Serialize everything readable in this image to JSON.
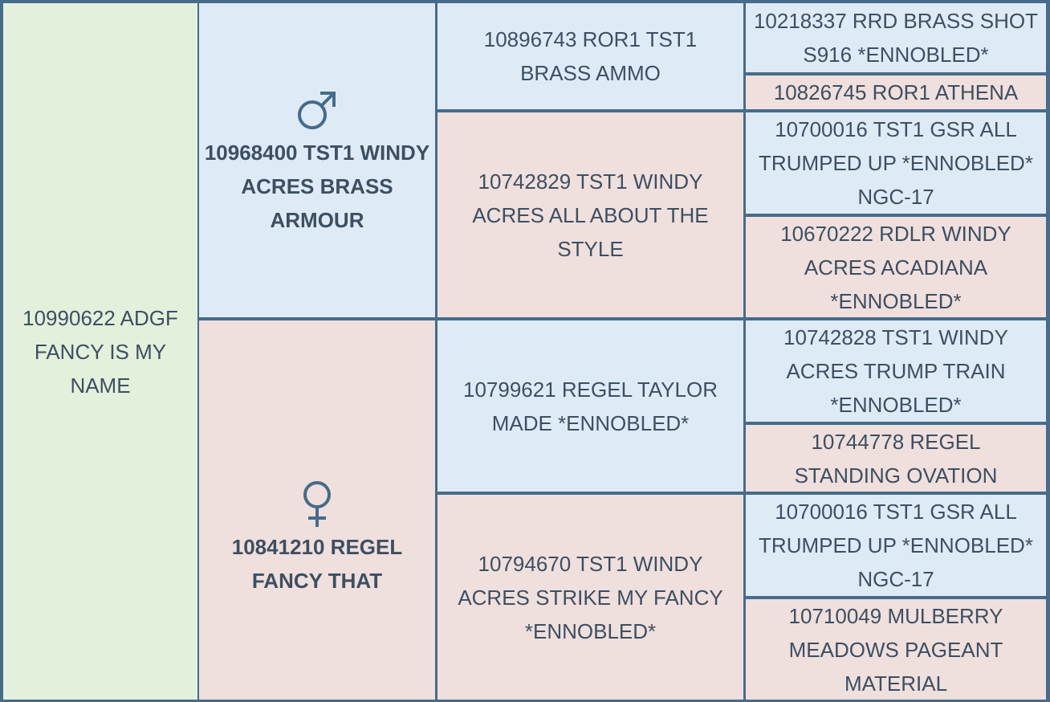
{
  "pedigree": {
    "subject": "10990622 ADGF FANCY IS MY NAME",
    "sire": {
      "symbol": "male-symbol",
      "name": "10968400 TST1 WINDY ACRES BRASS ARMOUR",
      "sire": {
        "name": "10896743 ROR1 TST1 BRASS AMMO",
        "sire": "10218337 RRD BRASS SHOT S916 *ENNOBLED*",
        "dam": "10826745 ROR1 ATHENA"
      },
      "dam": {
        "name": "10742829 TST1 WINDY ACRES ALL ABOUT THE STYLE",
        "sire": "10700016 TST1 GSR ALL TRUMPED UP *ENNOBLED* NGC-17",
        "dam": "10670222 RDLR WINDY ACRES ACADIANA *ENNOBLED*"
      }
    },
    "dam": {
      "symbol": "female-symbol",
      "name": "10841210 REGEL FANCY THAT",
      "sire": {
        "name": "10799621 REGEL TAYLOR MADE *ENNOBLED*",
        "sire": "10742828 TST1 WINDY ACRES TRUMP TRAIN *ENNOBLED*",
        "dam": "10744778 REGEL STANDING OVATION"
      },
      "dam": {
        "name": "10794670 TST1 WINDY ACRES STRIKE MY FANCY *ENNOBLED*",
        "sire": "10700016 TST1 GSR ALL TRUMPED UP *ENNOBLED* NGC-17",
        "dam": "10710049 MULBERRY MEADOWS PAGEANT MATERIAL"
      }
    },
    "colors": {
      "subject_bg": "#e3f0dc",
      "male_bg": "#deebf7",
      "female_bg": "#efdfdd",
      "border": "#476b8a",
      "text": "#3d4f61"
    }
  }
}
